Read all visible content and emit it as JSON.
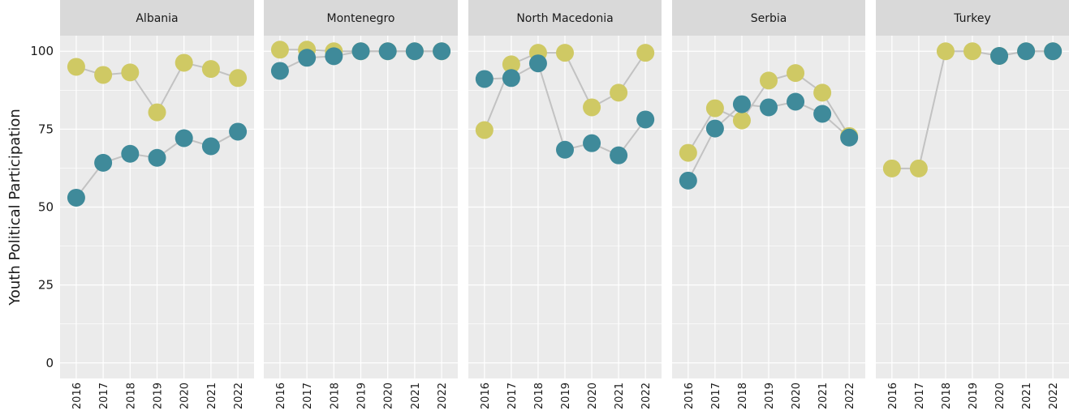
{
  "chart_data": [
    {
      "type": "line",
      "title": "Albania",
      "ylabel": "Youth Political Participation",
      "categories": [
        "2016",
        "2017",
        "2018",
        "2019",
        "2020",
        "2021",
        "2022"
      ],
      "series": [
        {
          "color": "#cfc964",
          "values": [
            95,
            92.4,
            93.2,
            80.4,
            96.3,
            94.3,
            91.4
          ]
        },
        {
          "color": "#3f8a9a",
          "values": [
            53,
            64.2,
            67.1,
            65.8,
            72.1,
            69.5,
            74.2
          ]
        }
      ],
      "ylim": [
        -5,
        105
      ],
      "yticks": [
        0,
        25,
        50,
        75,
        100
      ],
      "yminor": [
        12.5,
        37.5,
        62.5,
        87.5
      ],
      "grid": true
    },
    {
      "type": "line",
      "title": "Montenegro",
      "categories": [
        "2016",
        "2017",
        "2018",
        "2019",
        "2020",
        "2021",
        "2022"
      ],
      "series": [
        {
          "color": "#cfc964",
          "values": [
            100.5,
            100.5,
            100,
            100,
            100,
            100,
            100
          ]
        },
        {
          "color": "#3f8a9a",
          "values": [
            93.7,
            97.9,
            98.4,
            100,
            100,
            100,
            100
          ]
        }
      ],
      "ylim": [
        -5,
        105
      ],
      "yticks": [
        0,
        25,
        50,
        75,
        100
      ],
      "yminor": [
        12.5,
        37.5,
        62.5,
        87.5
      ],
      "grid": true
    },
    {
      "type": "line",
      "title": "North Macedonia",
      "categories": [
        "2016",
        "2017",
        "2018",
        "2019",
        "2020",
        "2021",
        "2022"
      ],
      "series": [
        {
          "color": "#cfc964",
          "values": [
            74.7,
            95.8,
            99.5,
            99.5,
            82,
            86.7,
            99.5
          ]
        },
        {
          "color": "#3f8a9a",
          "values": [
            91.1,
            91.4,
            96.1,
            68.4,
            70.5,
            66.6,
            78.1
          ]
        }
      ],
      "ylim": [
        -5,
        105
      ],
      "yticks": [
        0,
        25,
        50,
        75,
        100
      ],
      "yminor": [
        12.5,
        37.5,
        62.5,
        87.5
      ],
      "grid": true
    },
    {
      "type": "line",
      "title": "Serbia",
      "categories": [
        "2016",
        "2017",
        "2018",
        "2019",
        "2020",
        "2021",
        "2022"
      ],
      "series": [
        {
          "color": "#cfc964",
          "values": [
            67.4,
            81.7,
            77.8,
            90.6,
            93,
            86.7,
            72.8
          ]
        },
        {
          "color": "#3f8a9a",
          "values": [
            58.5,
            75.2,
            83,
            82,
            83.8,
            79.9,
            72.3
          ]
        }
      ],
      "ylim": [
        -5,
        105
      ],
      "yticks": [
        0,
        25,
        50,
        75,
        100
      ],
      "yminor": [
        12.5,
        37.5,
        62.5,
        87.5
      ],
      "grid": true
    },
    {
      "type": "line",
      "title": "Turkey",
      "categories": [
        "2016",
        "2017",
        "2018",
        "2019",
        "2020",
        "2021",
        "2022"
      ],
      "series": [
        {
          "color": "#cfc964",
          "values": [
            62.4,
            62.4,
            100,
            100,
            98.5,
            100,
            100
          ]
        },
        {
          "color": "#3f8a9a",
          "values": [
            null,
            null,
            null,
            null,
            98.5,
            100,
            100
          ]
        }
      ],
      "ylim": [
        -5,
        105
      ],
      "yticks": [
        0,
        25,
        50,
        75,
        100
      ],
      "yminor": [
        12.5,
        37.5,
        62.5,
        87.5
      ],
      "grid": true
    }
  ]
}
